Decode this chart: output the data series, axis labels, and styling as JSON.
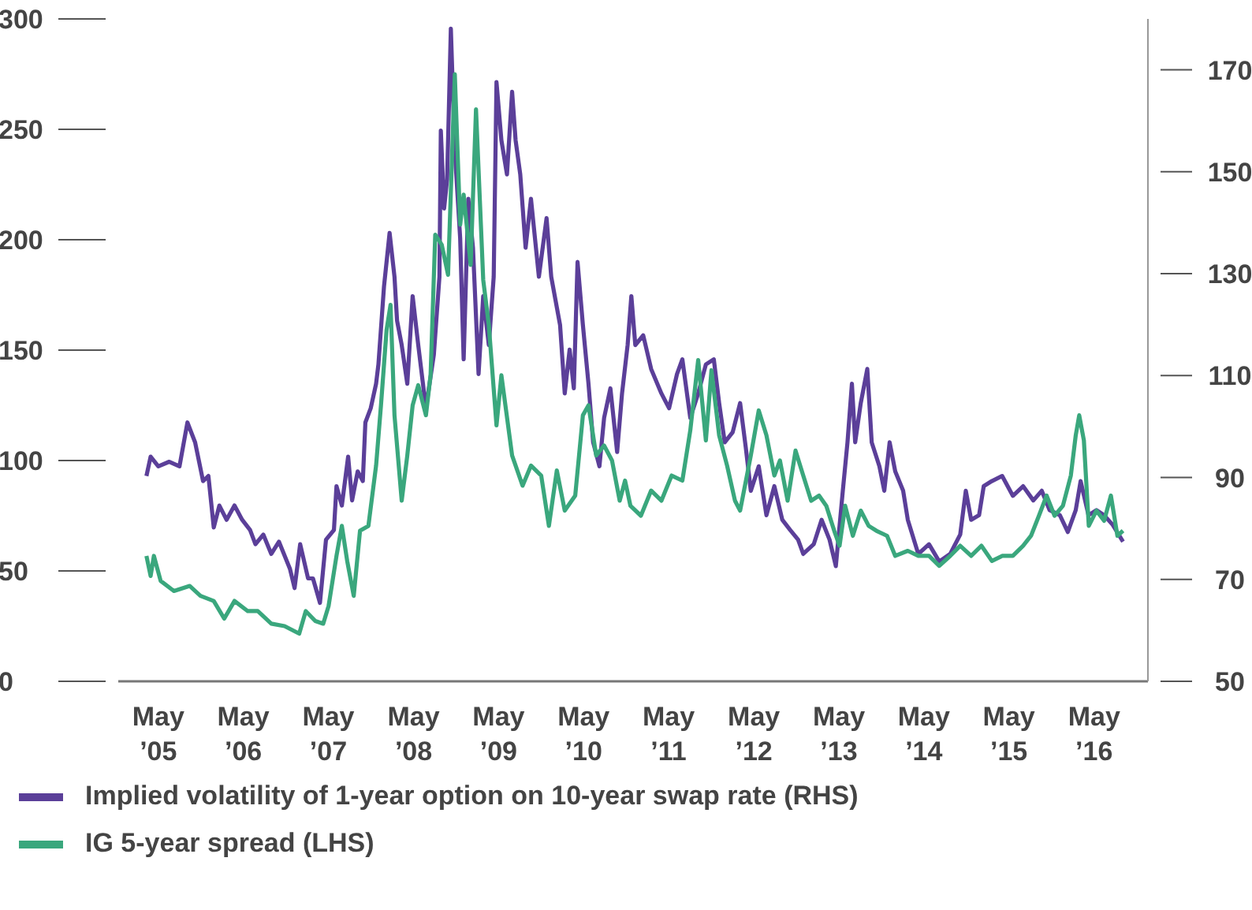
{
  "chart_data": {
    "type": "line",
    "legend": "bottom",
    "marker": "none",
    "line_style": "solid",
    "xlim": [
      "2004-11-24",
      "2017-01-01"
    ],
    "xticks": [
      {
        "value": "2005-05-15",
        "label": "May ’05"
      },
      {
        "value": "2006-05-15",
        "label": "May ’06"
      },
      {
        "value": "2007-05-15",
        "label": "May ’07"
      },
      {
        "value": "2008-05-15",
        "label": "May ’08"
      },
      {
        "value": "2009-05-15",
        "label": "May ’09"
      },
      {
        "value": "2010-05-15",
        "label": "May ’10"
      },
      {
        "value": "2011-05-15",
        "label": "May ’11"
      },
      {
        "value": "2012-05-15",
        "label": "May ’12"
      },
      {
        "value": "2013-05-15",
        "label": "May ’13"
      },
      {
        "value": "2014-05-15",
        "label": "May ’14"
      },
      {
        "value": "2015-05-15",
        "label": "May ’15"
      },
      {
        "value": "2016-05-15",
        "label": "May ’16"
      }
    ],
    "ylim": [
      0,
      300
    ],
    "yticks": [
      0,
      50,
      100,
      150,
      200,
      250,
      300
    ],
    "y2lim": [
      50,
      180
    ],
    "y2ticks": [
      50,
      70,
      90,
      110,
      130,
      150,
      170
    ],
    "series": [
      {
        "name": "Implied volatility of 1-year option on 10-year swap rate (RHS)",
        "color": "#5b3f99",
        "axis": "y2",
        "x": [
          "2005-03-25",
          "2005-04-12",
          "2005-05-15",
          "2005-07-01",
          "2005-08-14",
          "2005-09-17",
          "2005-10-20",
          "2005-11-23",
          "2005-12-16",
          "2006-01-08",
          "2006-02-01",
          "2006-03-04",
          "2006-04-07",
          "2006-05-10",
          "2006-06-13",
          "2006-07-06",
          "2006-08-09",
          "2006-09-12",
          "2006-10-15",
          "2006-12-01",
          "2006-12-21",
          "2007-01-14",
          "2007-02-17",
          "2007-03-10",
          "2007-04-09",
          "2007-04-23",
          "2007-05-05",
          "2007-06-08",
          "2007-06-19",
          "2007-07-12",
          "2007-08-08",
          "2007-08-25",
          "2007-09-18",
          "2007-10-10",
          "2007-10-21",
          "2007-11-13",
          "2007-12-06",
          "2007-12-16",
          "2008-01-09",
          "2008-02-02",
          "2008-02-23",
          "2008-03-05",
          "2008-03-25",
          "2008-04-18",
          "2008-05-11",
          "2008-06-04",
          "2008-07-07",
          "2008-08-10",
          "2008-09-03",
          "2008-09-09",
          "2008-09-23",
          "2008-10-06",
          "2008-10-22",
          "2008-11-08",
          "2008-12-01",
          "2008-12-16",
          "2009-01-05",
          "2009-01-25",
          "2009-02-18",
          "2009-03-10",
          "2009-04-03",
          "2009-04-24",
          "2009-05-06",
          "2009-05-27",
          "2009-06-20",
          "2009-07-12",
          "2009-07-27",
          "2009-08-16",
          "2009-09-08",
          "2009-10-01",
          "2009-11-04",
          "2009-12-07",
          "2009-12-27",
          "2010-02-03",
          "2010-02-23",
          "2010-03-16",
          "2010-04-03",
          "2010-04-19",
          "2010-05-12",
          "2010-06-05",
          "2010-06-25",
          "2010-07-22",
          "2010-08-11",
          "2010-09-07",
          "2010-10-06",
          "2010-10-27",
          "2010-11-20",
          "2010-12-06",
          "2010-12-23",
          "2011-01-26",
          "2011-03-01",
          "2011-04-14",
          "2011-05-17",
          "2011-06-20",
          "2011-07-13",
          "2011-08-16",
          "2011-09-19",
          "2011-10-22",
          "2011-11-25",
          "2011-12-18",
          "2012-01-11",
          "2012-02-14",
          "2012-03-17",
          "2012-04-10",
          "2012-05-02",
          "2012-06-05",
          "2012-07-08",
          "2012-08-11",
          "2012-09-14",
          "2012-10-18",
          "2012-11-21",
          "2012-12-13",
          "2013-01-27",
          "2013-03-02",
          "2013-04-05",
          "2013-05-02",
          "2013-06-01",
          "2013-06-21",
          "2013-07-10",
          "2013-07-24",
          "2013-08-17",
          "2013-09-14",
          "2013-10-03",
          "2013-11-05",
          "2013-11-26",
          "2013-12-19",
          "2014-01-12",
          "2014-02-15",
          "2014-03-07",
          "2014-04-21",
          "2014-06-06",
          "2014-07-20",
          "2014-09-05",
          "2014-10-18",
          "2014-11-11",
          "2014-12-04",
          "2015-01-07",
          "2015-01-27",
          "2015-03-03",
          "2015-04-16",
          "2015-06-01",
          "2015-07-15",
          "2015-08-28",
          "2015-10-03",
          "2015-11-06",
          "2015-12-20",
          "2016-01-23",
          "2016-02-26",
          "2016-03-18",
          "2016-04-21",
          "2016-05-25",
          "2016-06-27",
          "2016-08-03",
          "2016-09-16"
        ],
        "values": [
          90.3,
          94.1,
          92.2,
          93.1,
          92.2,
          100.8,
          96.9,
          89.3,
          90.3,
          80.2,
          84.5,
          81.7,
          84.5,
          81.7,
          79.7,
          76.9,
          78.8,
          75.0,
          77.4,
          72.1,
          68.3,
          76.9,
          70.2,
          70.2,
          65.4,
          72.1,
          77.8,
          79.7,
          88.3,
          84.5,
          94.1,
          85.5,
          91.2,
          89.3,
          100.8,
          103.6,
          108.4,
          112.2,
          127.5,
          138.0,
          129.4,
          120.8,
          116.0,
          108.4,
          125.6,
          116.0,
          103.6,
          114.1,
          129.4,
          158.1,
          142.8,
          148.5,
          178.1,
          154.2,
          137.0,
          113.2,
          144.7,
          135.1,
          110.3,
          125.6,
          116.0,
          129.4,
          167.6,
          156.2,
          149.5,
          165.7,
          156.2,
          149.5,
          135.1,
          144.7,
          129.4,
          140.9,
          129.4,
          119.9,
          106.5,
          115.1,
          107.5,
          132.3,
          119.9,
          108.4,
          96.9,
          92.2,
          101.7,
          107.5,
          95.0,
          106.5,
          116.0,
          125.6,
          116.0,
          117.9,
          111.3,
          106.5,
          103.6,
          110.3,
          113.2,
          101.7,
          106.5,
          112.2,
          113.2,
          104.6,
          96.9,
          98.9,
          104.6,
          96.0,
          87.4,
          92.2,
          82.6,
          88.3,
          81.7,
          79.7,
          77.8,
          75.0,
          76.9,
          81.7,
          77.8,
          72.6,
          87.4,
          96.9,
          108.4,
          96.9,
          104.6,
          111.3,
          96.9,
          92.2,
          87.4,
          96.9,
          91.2,
          87.4,
          81.7,
          75.0,
          76.9,
          73.5,
          75.0,
          78.8,
          87.4,
          81.7,
          82.6,
          88.3,
          89.3,
          90.3,
          86.4,
          88.3,
          85.5,
          87.4,
          83.6,
          82.6,
          79.3,
          83.6,
          89.3,
          82.6,
          83.6,
          82.6,
          80.7,
          77.4
        ]
      },
      {
        "name": "IG 5-year spread (LHS)",
        "color": "#3aa77d",
        "x": [
          "2005-03-25",
          "2005-04-12",
          "2005-04-26",
          "2005-05-25",
          "2005-07-21",
          "2005-09-27",
          "2005-11-12",
          "2006-01-08",
          "2006-02-22",
          "2006-04-07",
          "2006-06-03",
          "2006-07-16",
          "2006-09-12",
          "2006-11-08",
          "2007-01-10",
          "2007-02-07",
          "2007-03-20",
          "2007-04-23",
          "2007-05-16",
          "2007-06-19",
          "2007-07-12",
          "2007-08-04",
          "2007-09-01",
          "2007-09-28",
          "2007-11-03",
          "2007-12-06",
          "2007-12-27",
          "2008-01-20",
          "2008-02-06",
          "2008-02-23",
          "2008-03-25",
          "2008-04-18",
          "2008-05-11",
          "2008-06-04",
          "2008-07-07",
          "2008-07-27",
          "2008-08-16",
          "2008-09-13",
          "2008-10-10",
          "2008-11-08",
          "2008-12-01",
          "2008-12-16",
          "2009-01-15",
          "2009-02-07",
          "2009-02-28",
          "2009-03-10",
          "2009-04-03",
          "2009-05-06",
          "2009-05-27",
          "2009-07-12",
          "2009-08-26",
          "2009-10-01",
          "2009-11-14",
          "2009-12-17",
          "2010-01-20",
          "2010-02-23",
          "2010-04-09",
          "2010-05-12",
          "2010-06-05",
          "2010-07-08",
          "2010-08-11",
          "2010-09-14",
          "2010-10-17",
          "2010-11-09",
          "2010-12-02",
          "2011-01-16",
          "2011-03-01",
          "2011-04-14",
          "2011-05-28",
          "2011-07-13",
          "2011-08-16",
          "2011-09-19",
          "2011-10-22",
          "2011-11-15",
          "2011-12-18",
          "2012-01-21",
          "2012-02-24",
          "2012-03-17",
          "2012-05-02",
          "2012-06-05",
          "2012-07-08",
          "2012-08-11",
          "2012-09-04",
          "2012-10-07",
          "2012-11-10",
          "2012-12-13",
          "2013-01-16",
          "2013-02-19",
          "2013-03-22",
          "2013-04-25",
          "2013-05-18",
          "2013-06-11",
          "2013-07-14",
          "2013-08-17",
          "2013-09-20",
          "2013-10-23",
          "2013-12-08",
          "2014-01-12",
          "2014-03-07",
          "2014-04-21",
          "2014-06-06",
          "2014-07-20",
          "2014-09-05",
          "2014-10-18",
          "2014-12-04",
          "2015-01-17",
          "2015-03-03",
          "2015-04-16",
          "2015-06-01",
          "2015-07-15",
          "2015-08-18",
          "2015-09-21",
          "2015-10-24",
          "2015-11-27",
          "2016-01-02",
          "2016-02-05",
          "2016-02-26",
          "2016-03-12",
          "2016-04-01",
          "2016-04-22",
          "2016-05-25",
          "2016-06-27",
          "2016-07-26",
          "2016-08-23",
          "2016-09-16"
        ],
        "values": [
          56.8,
          47.7,
          56.8,
          45.5,
          40.9,
          43.2,
          38.7,
          36.4,
          28.4,
          36.4,
          31.8,
          31.8,
          26.1,
          25.0,
          21.6,
          31.8,
          27.3,
          26.1,
          34.1,
          56.8,
          70.4,
          54.5,
          38.7,
          68.2,
          70.4,
          97.7,
          125.0,
          159.1,
          170.5,
          120.5,
          81.8,
          102.3,
          125.0,
          134.1,
          120.5,
          138.6,
          202.3,
          197.7,
          184.1,
          275.0,
          206.8,
          220.4,
          188.6,
          259.1,
          206.8,
          181.8,
          161.4,
          115.9,
          138.6,
          102.3,
          88.6,
          97.7,
          93.2,
          70.4,
          95.5,
          77.3,
          84.1,
          120.5,
          125.0,
          102.3,
          106.8,
          100.0,
          81.8,
          90.9,
          79.5,
          75.0,
          86.4,
          81.8,
          93.2,
          90.9,
          113.6,
          145.5,
          109.1,
          140.9,
          111.4,
          97.7,
          81.8,
          77.3,
          102.3,
          122.7,
          111.4,
          93.2,
          100.0,
          81.8,
          104.5,
          93.2,
          81.8,
          84.1,
          79.5,
          68.2,
          61.4,
          79.5,
          65.9,
          77.3,
          70.4,
          68.2,
          65.9,
          56.8,
          59.1,
          56.8,
          56.8,
          52.3,
          56.8,
          61.4,
          56.8,
          61.4,
          54.5,
          56.8,
          56.8,
          61.4,
          65.9,
          75.0,
          84.1,
          75.0,
          79.5,
          93.2,
          111.4,
          120.5,
          109.1,
          70.4,
          77.3,
          72.7,
          84.1,
          65.9,
          68.2
        ]
      }
    ]
  }
}
